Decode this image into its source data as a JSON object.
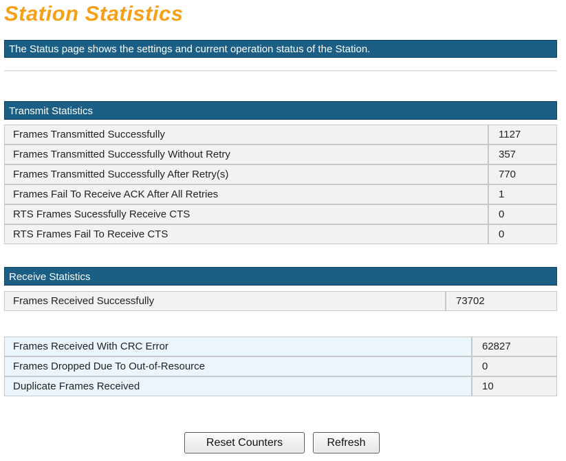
{
  "page": {
    "title": "Station Statistics",
    "description": "The Status page shows the settings and current operation status of the Station."
  },
  "transmit": {
    "heading": "Transmit Statistics",
    "rows": [
      {
        "label": "Frames Transmitted Successfully",
        "value": "1127"
      },
      {
        "label": "Frames Transmitted Successfully Without Retry",
        "value": "357"
      },
      {
        "label": "Frames Transmitted Successfully After Retry(s)",
        "value": "770"
      },
      {
        "label": "Frames Fail To Receive ACK After All Retries",
        "value": "1"
      },
      {
        "label": "RTS Frames Sucessfully Receive CTS",
        "value": "0"
      },
      {
        "label": "RTS Frames Fail To Receive CTS",
        "value": "0"
      }
    ]
  },
  "receive": {
    "heading": "Receive Statistics",
    "rows": [
      {
        "label": "Frames Received Successfully",
        "value": "73702"
      }
    ],
    "more_rows": [
      {
        "label": "Frames Received With CRC Error",
        "value": "62827"
      },
      {
        "label": "Frames Dropped Due To Out-of-Resource",
        "value": "0"
      },
      {
        "label": "Duplicate Frames Received",
        "value": "10"
      }
    ]
  },
  "buttons": {
    "reset": "Reset Counters",
    "refresh": "Refresh"
  },
  "colors": {
    "title": "#f5a016",
    "header_bar": "#1b5f86"
  }
}
